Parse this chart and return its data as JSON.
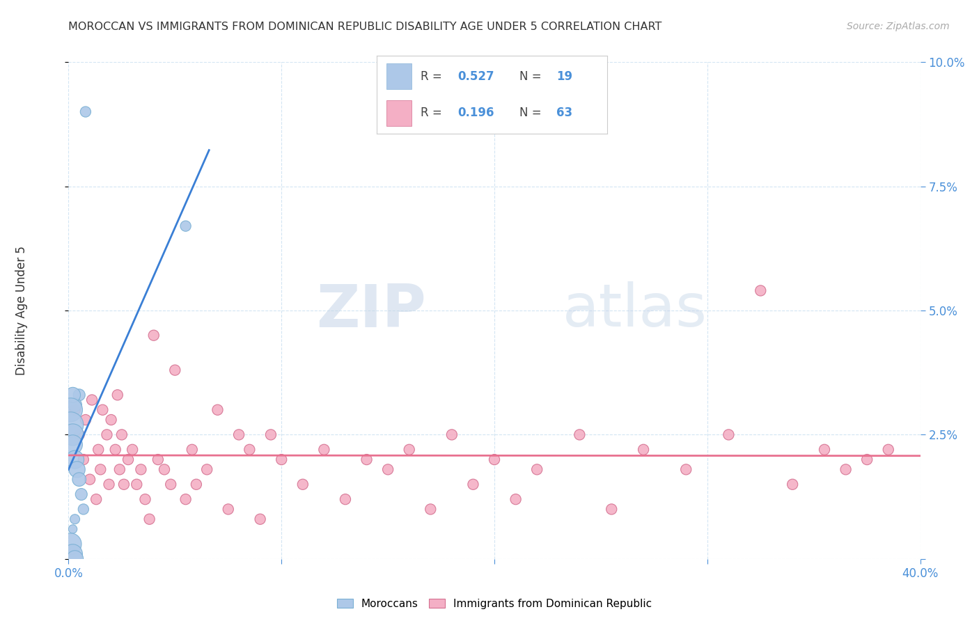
{
  "title": "MOROCCAN VS IMMIGRANTS FROM DOMINICAN REPUBLIC DISABILITY AGE UNDER 5 CORRELATION CHART",
  "source": "Source: ZipAtlas.com",
  "ylabel": "Disability Age Under 5",
  "xlim": [
    0,
    0.4
  ],
  "ylim": [
    0,
    0.1
  ],
  "R_blue": 0.527,
  "N_blue": 19,
  "R_pink": 0.196,
  "N_pink": 63,
  "blue_color": "#adc8e8",
  "pink_color": "#f4afc5",
  "blue_line_color": "#3a7fd5",
  "pink_line_color": "#e8708f",
  "watermark_zip": "ZIP",
  "watermark_atlas": "atlas",
  "blue_dots_x": [
    0.008,
    0.055,
    0.005,
    0.003,
    0.002,
    0.001,
    0.001,
    0.002,
    0.002,
    0.003,
    0.004,
    0.005,
    0.006,
    0.007,
    0.003,
    0.002,
    0.001,
    0.002,
    0.003
  ],
  "blue_dots_y": [
    0.09,
    0.067,
    0.033,
    0.031,
    0.033,
    0.03,
    0.027,
    0.025,
    0.023,
    0.02,
    0.018,
    0.016,
    0.013,
    0.01,
    0.008,
    0.006,
    0.003,
    0.001,
    0.0
  ],
  "blue_dots_size": [
    120,
    120,
    150,
    200,
    250,
    600,
    700,
    500,
    400,
    350,
    280,
    200,
    150,
    120,
    100,
    80,
    500,
    400,
    300
  ],
  "pink_dots_x": [
    0.003,
    0.005,
    0.007,
    0.008,
    0.01,
    0.011,
    0.013,
    0.014,
    0.015,
    0.016,
    0.018,
    0.019,
    0.02,
    0.022,
    0.023,
    0.024,
    0.025,
    0.026,
    0.028,
    0.03,
    0.032,
    0.034,
    0.036,
    0.038,
    0.04,
    0.042,
    0.045,
    0.048,
    0.05,
    0.055,
    0.058,
    0.06,
    0.065,
    0.07,
    0.075,
    0.08,
    0.085,
    0.09,
    0.095,
    0.1,
    0.11,
    0.12,
    0.13,
    0.14,
    0.15,
    0.16,
    0.17,
    0.18,
    0.19,
    0.2,
    0.21,
    0.22,
    0.24,
    0.255,
    0.27,
    0.29,
    0.31,
    0.325,
    0.34,
    0.355,
    0.365,
    0.375,
    0.385
  ],
  "pink_dots_y": [
    0.03,
    0.025,
    0.02,
    0.028,
    0.016,
    0.032,
    0.012,
    0.022,
    0.018,
    0.03,
    0.025,
    0.015,
    0.028,
    0.022,
    0.033,
    0.018,
    0.025,
    0.015,
    0.02,
    0.022,
    0.015,
    0.018,
    0.012,
    0.008,
    0.045,
    0.02,
    0.018,
    0.015,
    0.038,
    0.012,
    0.022,
    0.015,
    0.018,
    0.03,
    0.01,
    0.025,
    0.022,
    0.008,
    0.025,
    0.02,
    0.015,
    0.022,
    0.012,
    0.02,
    0.018,
    0.022,
    0.01,
    0.025,
    0.015,
    0.02,
    0.012,
    0.018,
    0.025,
    0.01,
    0.022,
    0.018,
    0.025,
    0.054,
    0.015,
    0.022,
    0.018,
    0.02,
    0.022
  ],
  "pink_dots_size": [
    120,
    120,
    120,
    120,
    120,
    120,
    120,
    120,
    120,
    120,
    120,
    120,
    120,
    120,
    120,
    120,
    120,
    120,
    120,
    120,
    120,
    120,
    120,
    120,
    120,
    120,
    120,
    120,
    120,
    120,
    120,
    120,
    120,
    120,
    120,
    120,
    120,
    120,
    120,
    120,
    120,
    120,
    120,
    120,
    120,
    120,
    120,
    120,
    120,
    120,
    120,
    120,
    120,
    120,
    120,
    120,
    120,
    120,
    120,
    120,
    120,
    120,
    120
  ]
}
